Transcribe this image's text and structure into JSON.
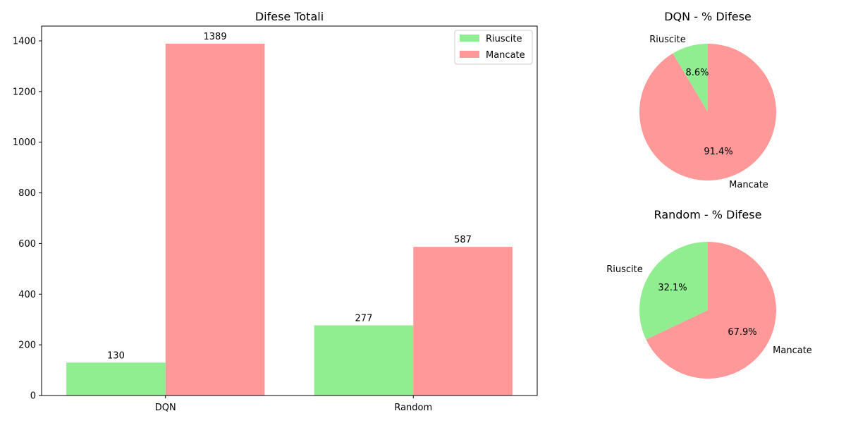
{
  "chart_data": [
    {
      "type": "bar",
      "title": "Difese Totali",
      "xlabel": "",
      "ylabel": "",
      "categories": [
        "DQN",
        "Random"
      ],
      "series": [
        {
          "name": "Riuscite",
          "values": [
            130,
            277
          ],
          "color": "#90ee90"
        },
        {
          "name": "Mancate",
          "values": [
            1389,
            587
          ],
          "color": "#ff9999"
        }
      ],
      "ylim": [
        0,
        1458.45
      ],
      "yticks": [
        0,
        200,
        400,
        600,
        800,
        1000,
        1200,
        1400
      ],
      "legend": {
        "position": "upper right",
        "labels": [
          "Riuscite",
          "Mancate"
        ]
      },
      "grid": false
    },
    {
      "type": "pie",
      "title": "DQN - % Difese",
      "labels": [
        "Riuscite",
        "Mancate"
      ],
      "values": [
        130,
        1389
      ],
      "percent_labels": [
        "8.6%",
        "91.4%"
      ],
      "colors": [
        "#90ee90",
        "#ff9999"
      ]
    },
    {
      "type": "pie",
      "title": "Random - % Difese",
      "labels": [
        "Riuscite",
        "Mancate"
      ],
      "values": [
        277,
        587
      ],
      "percent_labels": [
        "32.1%",
        "67.9%"
      ],
      "colors": [
        "#90ee90",
        "#ff9999"
      ]
    }
  ]
}
